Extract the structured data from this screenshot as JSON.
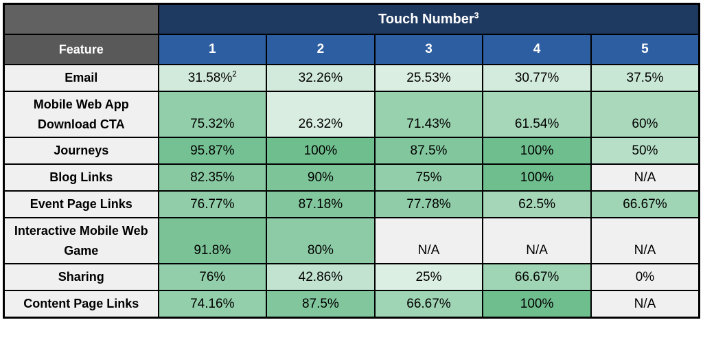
{
  "table": {
    "title": "Touch Number",
    "title_superscript": "3",
    "feature_header": "Feature",
    "columns": [
      "1",
      "2",
      "3",
      "4",
      "5"
    ],
    "rows": [
      {
        "feature": "Email",
        "cells": [
          {
            "text": "31.58%",
            "sup": "2",
            "pct": 31.58
          },
          {
            "text": "32.26%",
            "pct": 32.26
          },
          {
            "text": "25.53%",
            "pct": 25.53
          },
          {
            "text": "30.77%",
            "pct": 30.77
          },
          {
            "text": "37.5%",
            "pct": 37.5
          }
        ]
      },
      {
        "feature": "Mobile Web App Download CTA",
        "cells": [
          {
            "text": "75.32%",
            "pct": 75.32
          },
          {
            "text": "26.32%",
            "pct": 26.32
          },
          {
            "text": "71.43%",
            "pct": 71.43
          },
          {
            "text": "61.54%",
            "pct": 61.54
          },
          {
            "text": "60%",
            "pct": 60
          }
        ]
      },
      {
        "feature": "Journeys",
        "cells": [
          {
            "text": "95.87%",
            "pct": 95.87
          },
          {
            "text": "100%",
            "pct": 100
          },
          {
            "text": "87.5%",
            "pct": 87.5
          },
          {
            "text": "100%",
            "pct": 100
          },
          {
            "text": "50%",
            "pct": 50
          }
        ]
      },
      {
        "feature": "Blog Links",
        "cells": [
          {
            "text": "82.35%",
            "pct": 82.35
          },
          {
            "text": "90%",
            "pct": 90
          },
          {
            "text": "75%",
            "pct": 75
          },
          {
            "text": "100%",
            "pct": 100
          },
          {
            "text": "N/A",
            "pct": null
          }
        ]
      },
      {
        "feature": "Event Page Links",
        "cells": [
          {
            "text": "76.77%",
            "pct": 76.77
          },
          {
            "text": "87.18%",
            "pct": 87.18
          },
          {
            "text": "77.78%",
            "pct": 77.78
          },
          {
            "text": "62.5%",
            "pct": 62.5
          },
          {
            "text": "66.67%",
            "pct": 66.67
          }
        ]
      },
      {
        "feature": "Interactive Mobile Web Game",
        "cells": [
          {
            "text": "91.8%",
            "pct": 91.8
          },
          {
            "text": "80%",
            "pct": 80
          },
          {
            "text": "N/A",
            "pct": null
          },
          {
            "text": "N/A",
            "pct": null
          },
          {
            "text": "N/A",
            "pct": null
          }
        ]
      },
      {
        "feature": "Sharing",
        "cells": [
          {
            "text": "76%",
            "pct": 76
          },
          {
            "text": "42.86%",
            "pct": 42.86
          },
          {
            "text": "25%",
            "pct": 25
          },
          {
            "text": "66.67%",
            "pct": 66.67
          },
          {
            "text": "0%",
            "pct": 0
          }
        ]
      },
      {
        "feature": "Content Page Links",
        "cells": [
          {
            "text": "74.16%",
            "pct": 74.16
          },
          {
            "text": "87.5%",
            "pct": 87.5
          },
          {
            "text": "66.67%",
            "pct": 66.67
          },
          {
            "text": "100%",
            "pct": 100
          },
          {
            "text": "N/A",
            "pct": null
          }
        ]
      }
    ]
  },
  "colors": {
    "navy_header": "#1F3A60",
    "blue_header": "#2E5EA2",
    "gray_header": "#595959",
    "corner_bg": "#616161",
    "feature_cell_bg": "#F0F0F0",
    "na_cell_bg": "#F0F0F0",
    "green_full": "#6FBE8E",
    "border": "#000000",
    "header_text": "#FFFFFF",
    "body_text": "#000000"
  },
  "chart_data": {
    "type": "heatmap",
    "title": "Touch Number",
    "title_footnote_marker": "3",
    "row_label_header": "Feature",
    "columns": [
      "1",
      "2",
      "3",
      "4",
      "5"
    ],
    "rows": [
      "Email",
      "Mobile Web App Download CTA",
      "Journeys",
      "Blog Links",
      "Event Page Links",
      "Interactive Mobile Web Game",
      "Sharing",
      "Content Page Links"
    ],
    "values": [
      [
        31.58,
        32.26,
        25.53,
        30.77,
        37.5
      ],
      [
        75.32,
        26.32,
        71.43,
        61.54,
        60
      ],
      [
        95.87,
        100,
        87.5,
        100,
        50
      ],
      [
        82.35,
        90,
        75,
        100,
        null
      ],
      [
        76.77,
        87.18,
        77.78,
        62.5,
        66.67
      ],
      [
        91.8,
        80,
        null,
        null,
        null
      ],
      [
        76,
        42.86,
        25,
        66.67,
        0
      ],
      [
        74.16,
        87.5,
        66.67,
        100,
        null
      ]
    ],
    "unit": "%",
    "na_label": "N/A",
    "value_footnotes": [
      {
        "row": "Email",
        "column": "1",
        "marker": "2"
      }
    ],
    "colormap": "white-to-green (intensity proportional to value)",
    "legend": "none",
    "grid": "black cell borders"
  }
}
